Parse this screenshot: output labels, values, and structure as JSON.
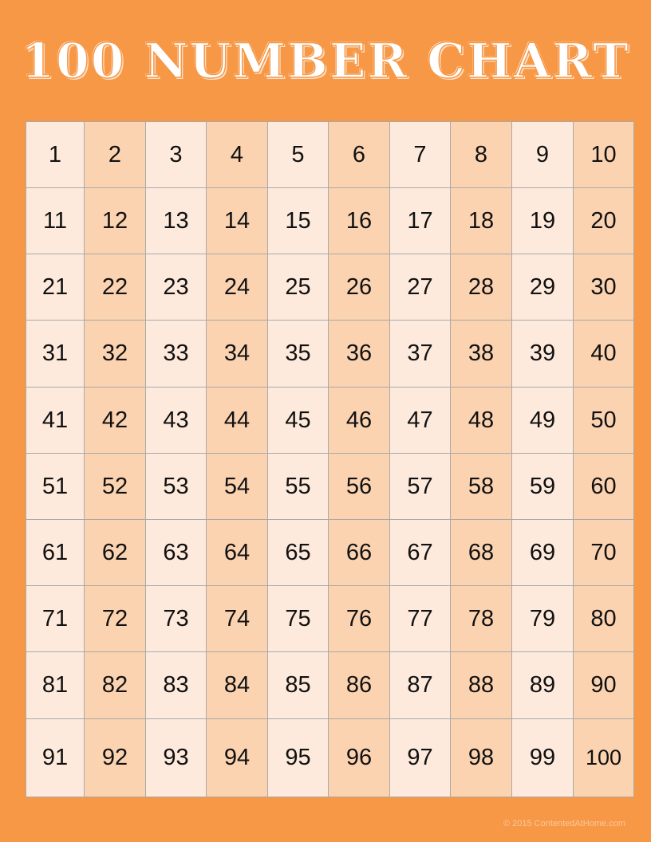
{
  "title": "100 NUMBER CHART",
  "colors": {
    "background": "#f79847",
    "cell_light": "#fdeadc",
    "cell_dark": "#fbd3b1",
    "grid_line": "#a9a9a9"
  },
  "grid": [
    [
      "1",
      "2",
      "3",
      "4",
      "5",
      "6",
      "7",
      "8",
      "9",
      "10"
    ],
    [
      "11",
      "12",
      "13",
      "14",
      "15",
      "16",
      "17",
      "18",
      "19",
      "20"
    ],
    [
      "21",
      "22",
      "23",
      "24",
      "25",
      "26",
      "27",
      "28",
      "29",
      "30"
    ],
    [
      "31",
      "32",
      "33",
      "34",
      "35",
      "36",
      "37",
      "38",
      "39",
      "40"
    ],
    [
      "41",
      "42",
      "43",
      "44",
      "45",
      "46",
      "47",
      "48",
      "49",
      "50"
    ],
    [
      "51",
      "52",
      "53",
      "54",
      "55",
      "56",
      "57",
      "58",
      "59",
      "60"
    ],
    [
      "61",
      "62",
      "63",
      "64",
      "65",
      "66",
      "67",
      "68",
      "69",
      "70"
    ],
    [
      "71",
      "72",
      "73",
      "74",
      "75",
      "76",
      "77",
      "78",
      "79",
      "80"
    ],
    [
      "81",
      "82",
      "83",
      "84",
      "85",
      "86",
      "87",
      "88",
      "89",
      "90"
    ],
    [
      "91",
      "92",
      "93",
      "94",
      "95",
      "96",
      "97",
      "98",
      "99",
      "100"
    ]
  ],
  "footer": "© 2015 ContentedAtHome.com"
}
